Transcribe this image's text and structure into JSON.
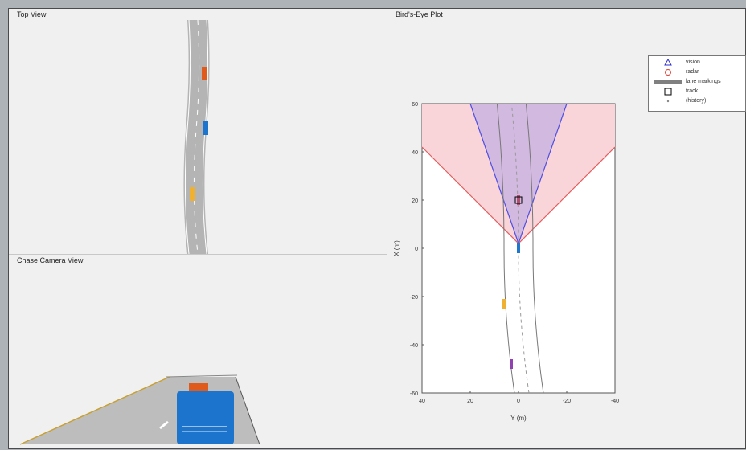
{
  "panels": {
    "top_view": "Top View",
    "chase_camera": "Chase Camera View",
    "birds_eye": "Bird's-Eye Plot"
  },
  "legend": {
    "items": [
      {
        "label": "vision",
        "icon": "triangle-icon",
        "color": "#3030d0"
      },
      {
        "label": "radar",
        "icon": "circle-icon",
        "color": "#e04030"
      },
      {
        "label": "lane markings",
        "icon": "gray-bar-icon",
        "color": "#808080"
      },
      {
        "label": "track",
        "icon": "square-icon",
        "color": "#000000"
      },
      {
        "label": "(history)",
        "icon": "dot-icon",
        "color": "#888888"
      }
    ]
  },
  "chart_data": {
    "type": "scatter",
    "title": "",
    "xlabel": "Y (m)",
    "ylabel": "X (m)",
    "xlim": [
      40,
      -40
    ],
    "ylim": [
      -60,
      60
    ],
    "xticks": [
      "40",
      "20",
      "0",
      "-20",
      "-40"
    ],
    "yticks": [
      "60",
      "40",
      "20",
      "0",
      "-20",
      "-40",
      "-60"
    ],
    "radar_coverage_color": "#f9d4d8",
    "vision_coverage_color": "#cbb4e0",
    "vehicles": [
      {
        "name": "ego",
        "y": 0,
        "x": 0,
        "color": "#1f77d0"
      },
      {
        "name": "lead",
        "y": 0,
        "x": 20,
        "color": "#b05070"
      },
      {
        "name": "rear-1",
        "y": 6,
        "x": -23,
        "color": "#f0b030"
      },
      {
        "name": "rear-2",
        "y": 3,
        "x": -48,
        "color": "#9040b0"
      }
    ]
  },
  "colors": {
    "road": "#b4b4b4",
    "car_orange": "#e05a1c",
    "car_blue": "#1c74cc",
    "car_yellow": "#f0b030"
  }
}
